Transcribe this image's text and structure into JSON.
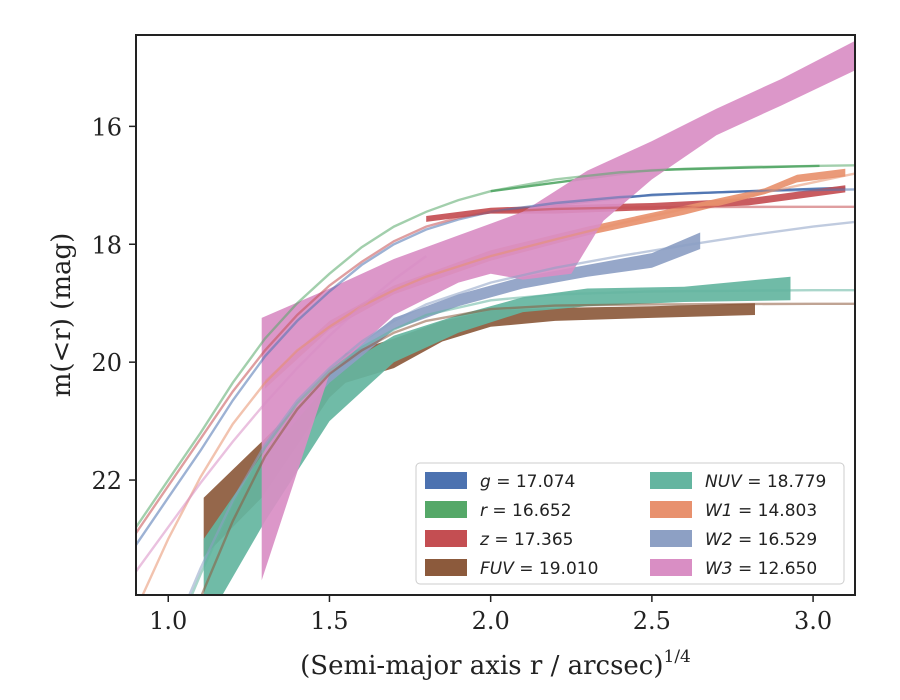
{
  "chart_data": {
    "type": "area",
    "xlabel": "(Semi-major axis r / arcsec)",
    "xlabel_exponent": "1/4",
    "ylabel": "m(<r) (mag)",
    "xlim": [
      0.9,
      3.13
    ],
    "ylim": [
      23.95,
      14.45
    ],
    "y_inverted": true,
    "xticks": [
      1.0,
      1.5,
      2.0,
      2.5,
      3.0
    ],
    "xtick_labels": [
      "1.0",
      "1.5",
      "2.0",
      "2.5",
      "3.0"
    ],
    "yticks": [
      16,
      18,
      20,
      22
    ],
    "ytick_labels": [
      "16",
      "18",
      "20",
      "22"
    ],
    "grid": false,
    "legend_placement": "lower-right",
    "legend_columns": 2,
    "series": [
      {
        "name": "g = 17.074",
        "legend_name": "g",
        "legend_value": "17.074",
        "color": "#4c72b0",
        "model": [
          [
            0.9,
            23.1
          ],
          [
            1.0,
            22.3
          ],
          [
            1.1,
            21.5
          ],
          [
            1.2,
            20.65
          ],
          [
            1.3,
            19.9
          ],
          [
            1.4,
            19.3
          ],
          [
            1.5,
            18.8
          ],
          [
            1.6,
            18.35
          ],
          [
            1.7,
            18.0
          ],
          [
            1.8,
            17.75
          ],
          [
            1.9,
            17.58
          ],
          [
            2.0,
            17.45
          ],
          [
            2.2,
            17.3
          ],
          [
            2.4,
            17.2
          ],
          [
            2.6,
            17.14
          ],
          [
            2.8,
            17.1
          ],
          [
            3.0,
            17.08
          ],
          [
            3.13,
            17.07
          ]
        ],
        "band_upper": [
          [
            2.0,
            17.47
          ],
          [
            2.5,
            17.18
          ],
          [
            3.1,
            17.06
          ]
        ],
        "band_lower": [
          [
            2.0,
            17.43
          ],
          [
            2.5,
            17.14
          ],
          [
            3.1,
            17.02
          ]
        ]
      },
      {
        "name": "r = 16.652",
        "legend_name": "r",
        "legend_value": "16.652",
        "color": "#55a868",
        "model": [
          [
            0.9,
            22.8
          ],
          [
            1.0,
            22.0
          ],
          [
            1.1,
            21.2
          ],
          [
            1.2,
            20.35
          ],
          [
            1.3,
            19.6
          ],
          [
            1.4,
            19.0
          ],
          [
            1.5,
            18.5
          ],
          [
            1.6,
            18.05
          ],
          [
            1.7,
            17.7
          ],
          [
            1.8,
            17.45
          ],
          [
            1.9,
            17.25
          ],
          [
            2.0,
            17.1
          ],
          [
            2.2,
            16.9
          ],
          [
            2.4,
            16.78
          ],
          [
            2.6,
            16.72
          ],
          [
            2.8,
            16.69
          ],
          [
            3.0,
            16.67
          ],
          [
            3.13,
            16.66
          ]
        ],
        "band_upper": [
          [
            2.0,
            17.12
          ],
          [
            2.5,
            16.76
          ],
          [
            3.02,
            16.69
          ]
        ],
        "band_lower": [
          [
            2.0,
            17.08
          ],
          [
            2.5,
            16.72
          ],
          [
            3.02,
            16.65
          ]
        ]
      },
      {
        "name": "z = 17.365",
        "legend_name": "z",
        "legend_value": "17.365",
        "color": "#c44e52",
        "model": [
          [
            0.9,
            22.9
          ],
          [
            1.0,
            22.1
          ],
          [
            1.1,
            21.3
          ],
          [
            1.2,
            20.5
          ],
          [
            1.3,
            19.8
          ],
          [
            1.4,
            19.2
          ],
          [
            1.5,
            18.7
          ],
          [
            1.6,
            18.3
          ],
          [
            1.7,
            17.95
          ],
          [
            1.8,
            17.7
          ],
          [
            1.9,
            17.55
          ],
          [
            2.0,
            17.45
          ],
          [
            2.2,
            17.4
          ],
          [
            2.4,
            17.38
          ],
          [
            2.6,
            17.37
          ],
          [
            2.8,
            17.366
          ],
          [
            3.0,
            17.365
          ],
          [
            3.13,
            17.365
          ]
        ],
        "band_upper": [
          [
            1.8,
            17.62
          ],
          [
            2.0,
            17.48
          ],
          [
            2.2,
            17.48
          ],
          [
            2.5,
            17.42
          ],
          [
            2.8,
            17.34
          ],
          [
            3.1,
            17.12
          ]
        ],
        "band_lower": [
          [
            1.8,
            17.52
          ],
          [
            2.0,
            17.38
          ],
          [
            2.2,
            17.34
          ],
          [
            2.5,
            17.3
          ],
          [
            2.8,
            17.22
          ],
          [
            3.1,
            17.0
          ]
        ]
      },
      {
        "name": "FUV = 19.010",
        "legend_name": "FUV",
        "legend_value": "19.010",
        "color": "#8c5a3c",
        "model": [
          [
            1.0,
            25.5
          ],
          [
            1.1,
            24.0
          ],
          [
            1.2,
            22.7
          ],
          [
            1.3,
            21.6
          ],
          [
            1.4,
            20.8
          ],
          [
            1.5,
            20.2
          ],
          [
            1.6,
            19.8
          ],
          [
            1.7,
            19.5
          ],
          [
            1.8,
            19.3
          ],
          [
            2.0,
            19.1
          ],
          [
            2.2,
            19.04
          ],
          [
            2.5,
            19.02
          ],
          [
            3.0,
            19.01
          ],
          [
            3.13,
            19.01
          ]
        ],
        "band_upper": [
          [
            1.11,
            22.3
          ],
          [
            1.29,
            21.35
          ],
          [
            1.5,
            20.2
          ],
          [
            1.55,
            19.85
          ],
          [
            1.7,
            19.6
          ],
          [
            1.85,
            19.3
          ],
          [
            2.0,
            19.12
          ],
          [
            2.2,
            19.08
          ],
          [
            2.5,
            19.05
          ],
          [
            2.82,
            19.0
          ]
        ],
        "band_lower": [
          [
            1.11,
            23.3
          ],
          [
            1.29,
            22.3
          ],
          [
            1.5,
            20.6
          ],
          [
            1.55,
            20.35
          ],
          [
            1.7,
            20.1
          ],
          [
            1.85,
            19.65
          ],
          [
            2.0,
            19.4
          ],
          [
            2.2,
            19.3
          ],
          [
            2.5,
            19.25
          ],
          [
            2.82,
            19.2
          ]
        ]
      },
      {
        "name": "NUV = 18.779",
        "legend_name": "NUV",
        "legend_value": "18.779",
        "color": "#64b5a0",
        "model": [
          [
            1.0,
            24.9
          ],
          [
            1.1,
            23.6
          ],
          [
            1.2,
            22.4
          ],
          [
            1.3,
            21.45
          ],
          [
            1.4,
            20.7
          ],
          [
            1.5,
            20.15
          ],
          [
            1.6,
            19.75
          ],
          [
            1.7,
            19.45
          ],
          [
            1.8,
            19.2
          ],
          [
            2.0,
            18.95
          ],
          [
            2.2,
            18.85
          ],
          [
            2.5,
            18.8
          ],
          [
            3.0,
            18.78
          ],
          [
            3.13,
            18.78
          ]
        ],
        "band_upper": [
          [
            1.11,
            23.0
          ],
          [
            1.3,
            21.5
          ],
          [
            1.5,
            20.2
          ],
          [
            1.7,
            19.55
          ],
          [
            1.9,
            19.2
          ],
          [
            2.1,
            18.9
          ],
          [
            2.3,
            18.75
          ],
          [
            2.6,
            18.72
          ],
          [
            2.93,
            18.55
          ]
        ],
        "band_lower": [
          [
            1.11,
            24.5
          ],
          [
            1.3,
            22.7
          ],
          [
            1.5,
            21.0
          ],
          [
            1.7,
            20.0
          ],
          [
            1.9,
            19.5
          ],
          [
            2.1,
            19.15
          ],
          [
            2.3,
            19.05
          ],
          [
            2.6,
            18.98
          ],
          [
            2.93,
            18.95
          ]
        ]
      },
      {
        "name": "W1 = 14.803",
        "legend_name": "W1",
        "legend_value": "14.803",
        "color": "#e8916e",
        "model": [
          [
            0.9,
            24.2
          ],
          [
            1.0,
            23.0
          ],
          [
            1.1,
            21.95
          ],
          [
            1.2,
            21.05
          ],
          [
            1.3,
            20.35
          ],
          [
            1.4,
            19.8
          ],
          [
            1.5,
            19.4
          ],
          [
            1.6,
            19.05
          ],
          [
            1.7,
            18.78
          ],
          [
            1.8,
            18.55
          ],
          [
            2.0,
            18.2
          ],
          [
            2.2,
            17.92
          ],
          [
            2.4,
            17.65
          ],
          [
            2.6,
            17.4
          ],
          [
            2.8,
            17.18
          ],
          [
            3.0,
            16.95
          ],
          [
            3.13,
            16.8
          ]
        ],
        "band_upper": [
          [
            1.3,
            20.3
          ],
          [
            1.5,
            19.3
          ],
          [
            1.7,
            18.7
          ],
          [
            2.0,
            18.1
          ],
          [
            2.3,
            17.7
          ],
          [
            2.6,
            17.35
          ],
          [
            2.85,
            17.05
          ],
          [
            2.95,
            16.82
          ],
          [
            3.1,
            16.72
          ]
        ],
        "band_lower": [
          [
            1.3,
            20.45
          ],
          [
            1.5,
            19.45
          ],
          [
            1.7,
            18.85
          ],
          [
            2.0,
            18.28
          ],
          [
            2.3,
            17.85
          ],
          [
            2.6,
            17.5
          ],
          [
            2.85,
            17.15
          ],
          [
            2.95,
            16.95
          ],
          [
            3.1,
            16.85
          ]
        ]
      },
      {
        "name": "W2 = 16.529",
        "legend_name": "W2",
        "legend_value": "16.529",
        "color": "#8da0c4",
        "model": [
          [
            1.0,
            24.8
          ],
          [
            1.1,
            23.5
          ],
          [
            1.2,
            22.35
          ],
          [
            1.3,
            21.4
          ],
          [
            1.4,
            20.65
          ],
          [
            1.5,
            20.1
          ],
          [
            1.6,
            19.65
          ],
          [
            1.7,
            19.3
          ],
          [
            1.8,
            19.02
          ],
          [
            2.0,
            18.65
          ],
          [
            2.2,
            18.4
          ],
          [
            2.4,
            18.2
          ],
          [
            2.6,
            18.02
          ],
          [
            2.8,
            17.85
          ],
          [
            3.0,
            17.7
          ],
          [
            3.13,
            17.62
          ]
        ],
        "band_upper": [
          [
            1.3,
            21.4
          ],
          [
            1.5,
            20.1
          ],
          [
            1.7,
            19.25
          ],
          [
            1.9,
            18.85
          ],
          [
            2.1,
            18.55
          ],
          [
            2.3,
            18.35
          ],
          [
            2.5,
            18.15
          ],
          [
            2.65,
            17.8
          ]
        ],
        "band_lower": [
          [
            1.3,
            21.6
          ],
          [
            1.5,
            20.35
          ],
          [
            1.7,
            19.45
          ],
          [
            1.9,
            19.05
          ],
          [
            2.1,
            18.75
          ],
          [
            2.3,
            18.55
          ],
          [
            2.5,
            18.4
          ],
          [
            2.65,
            18.08
          ]
        ]
      },
      {
        "name": "W3 = 12.650",
        "legend_name": "W3",
        "legend_value": "12.650",
        "color": "#d98ec4",
        "model": [
          [
            0.9,
            23.55
          ],
          [
            1.0,
            22.8
          ],
          [
            1.1,
            22.05
          ],
          [
            1.2,
            21.35
          ],
          [
            1.3,
            20.7
          ],
          [
            1.4,
            20.1
          ],
          [
            1.5,
            19.55
          ],
          [
            1.6,
            19.05
          ],
          [
            1.7,
            18.6
          ],
          [
            1.8,
            18.2
          ]
        ],
        "band_upper": [
          [
            1.29,
            19.25
          ],
          [
            1.5,
            18.75
          ],
          [
            1.7,
            18.25
          ],
          [
            1.9,
            17.85
          ],
          [
            2.0,
            17.65
          ],
          [
            2.1,
            17.45
          ],
          [
            2.3,
            16.75
          ],
          [
            2.5,
            16.25
          ],
          [
            2.7,
            15.7
          ],
          [
            2.9,
            15.2
          ],
          [
            3.13,
            14.55
          ]
        ],
        "band_lower": [
          [
            1.29,
            23.7
          ],
          [
            1.5,
            20.2
          ],
          [
            1.7,
            19.2
          ],
          [
            1.9,
            18.65
          ],
          [
            2.0,
            18.5
          ],
          [
            2.1,
            18.6
          ],
          [
            2.25,
            18.5
          ],
          [
            2.35,
            17.6
          ],
          [
            2.5,
            16.9
          ],
          [
            2.7,
            16.15
          ],
          [
            2.9,
            15.65
          ],
          [
            3.13,
            15.05
          ]
        ]
      }
    ]
  }
}
